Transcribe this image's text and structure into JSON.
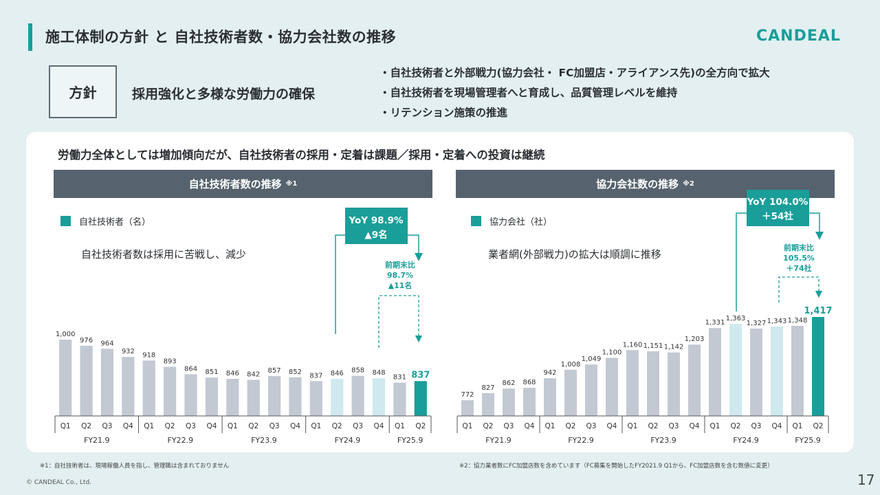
{
  "title": "施工体制の方針 と 自社技術者数・協力会社数の推移",
  "logo": "CANDEAL",
  "policy": {
    "label": "方針",
    "main": "採用強化と多様な労働力の確保",
    "bullets": [
      "自社技術者と外部戦力(協力会社・ FC加盟店・アライアンス先)の全方向で拡大",
      "自社技術者を現場管理者へと育成し、品質管理レベルを維持",
      "リテンション施策の推進"
    ]
  },
  "panel_heading": "労働力全体としては増加傾向だが、自社技術者の採用・定着は課題／採用・定着への投資は継続",
  "colors": {
    "accent": "#1a9e9a",
    "light": "#cfe9ef",
    "bar": "#c3c9d3",
    "header": "#56626e"
  },
  "left": {
    "section_title": "自社技術者数の推移",
    "section_note": "※1",
    "legend": "自社技術者（名）",
    "comment": "自社技術者数は採用に苦戦し、減少",
    "yoy_line1": "YoY 98.9%",
    "yoy_line2": "▲9名",
    "prev_line1": "前期末比",
    "prev_line2": "98.7%",
    "prev_line3": "▲11名"
  },
  "right": {
    "section_title": "協力会社数の推移",
    "section_note": "※2",
    "legend": "協力会社（社）",
    "comment": "業者網(外部戦力)の拡大は順調に推移",
    "yoy_line1": "YoY 104.0%",
    "yoy_line2": "＋54社",
    "prev_line1": "前期末比",
    "prev_line2": "105.5%",
    "prev_line3": "＋74社"
  },
  "chart_data": [
    {
      "type": "bar",
      "title": "自社技術者数の推移",
      "series_name": "自社技術者（名）",
      "categories": [
        "Q1",
        "Q2",
        "Q3",
        "Q4",
        "Q1",
        "Q2",
        "Q3",
        "Q4",
        "Q1",
        "Q2",
        "Q3",
        "Q4",
        "Q1",
        "Q2",
        "Q3",
        "Q4",
        "Q1",
        "Q2"
      ],
      "groups": [
        {
          "label": "FY21.9",
          "count": 4
        },
        {
          "label": "FY22.9",
          "count": 4
        },
        {
          "label": "FY23.9",
          "count": 4
        },
        {
          "label": "FY24.9",
          "count": 4
        },
        {
          "label": "FY25.9",
          "count": 2
        }
      ],
      "values": [
        1000,
        976,
        964,
        932,
        918,
        893,
        864,
        851,
        846,
        842,
        857,
        852,
        837,
        846,
        858,
        848,
        831,
        837
      ],
      "value_labels": [
        "1,000",
        "976",
        "964",
        "932",
        "918",
        "893",
        "864",
        "851",
        "846",
        "842",
        "857",
        "852",
        "837",
        "846",
        "858",
        "848",
        "831",
        "837"
      ],
      "highlight_light": [
        13,
        15
      ],
      "highlight_dark": [
        17
      ]
    },
    {
      "type": "bar",
      "title": "協力会社数の推移",
      "series_name": "協力会社（社）",
      "categories": [
        "Q1",
        "Q2",
        "Q3",
        "Q4",
        "Q1",
        "Q2",
        "Q3",
        "Q4",
        "Q1",
        "Q2",
        "Q3",
        "Q4",
        "Q1",
        "Q2",
        "Q3",
        "Q4",
        "Q1",
        "Q2"
      ],
      "groups": [
        {
          "label": "FY21.9",
          "count": 4
        },
        {
          "label": "FY22.9",
          "count": 4
        },
        {
          "label": "FY23.9",
          "count": 4
        },
        {
          "label": "FY24.9",
          "count": 4
        },
        {
          "label": "FY25.9",
          "count": 2
        }
      ],
      "values": [
        772,
        827,
        862,
        868,
        942,
        1008,
        1049,
        1100,
        1160,
        1151,
        1142,
        1203,
        1331,
        1363,
        1327,
        1343,
        1348,
        1417
      ],
      "value_labels": [
        "772",
        "827",
        "862",
        "868",
        "942",
        "1,008",
        "1,049",
        "1,100",
        "1,160",
        "1,151",
        "1,142",
        "1,203",
        "1,331",
        "1,363",
        "1,327",
        "1,343",
        "1,348",
        "1,417"
      ],
      "highlight_light": [
        13,
        15
      ],
      "highlight_dark": [
        17
      ]
    }
  ],
  "footnotes": {
    "left": "※1：自社技術者は、現場稼働人員を指し、管理職は含まれておりません",
    "right": "※2：協力業者数にFC加盟店数を含めています（FC募集を開始したFY2021.9 Q1から、FC加盟店数を含む数値に変更）"
  },
  "copyright": "© CANDEAL Co., Ltd.",
  "page_number": "17"
}
